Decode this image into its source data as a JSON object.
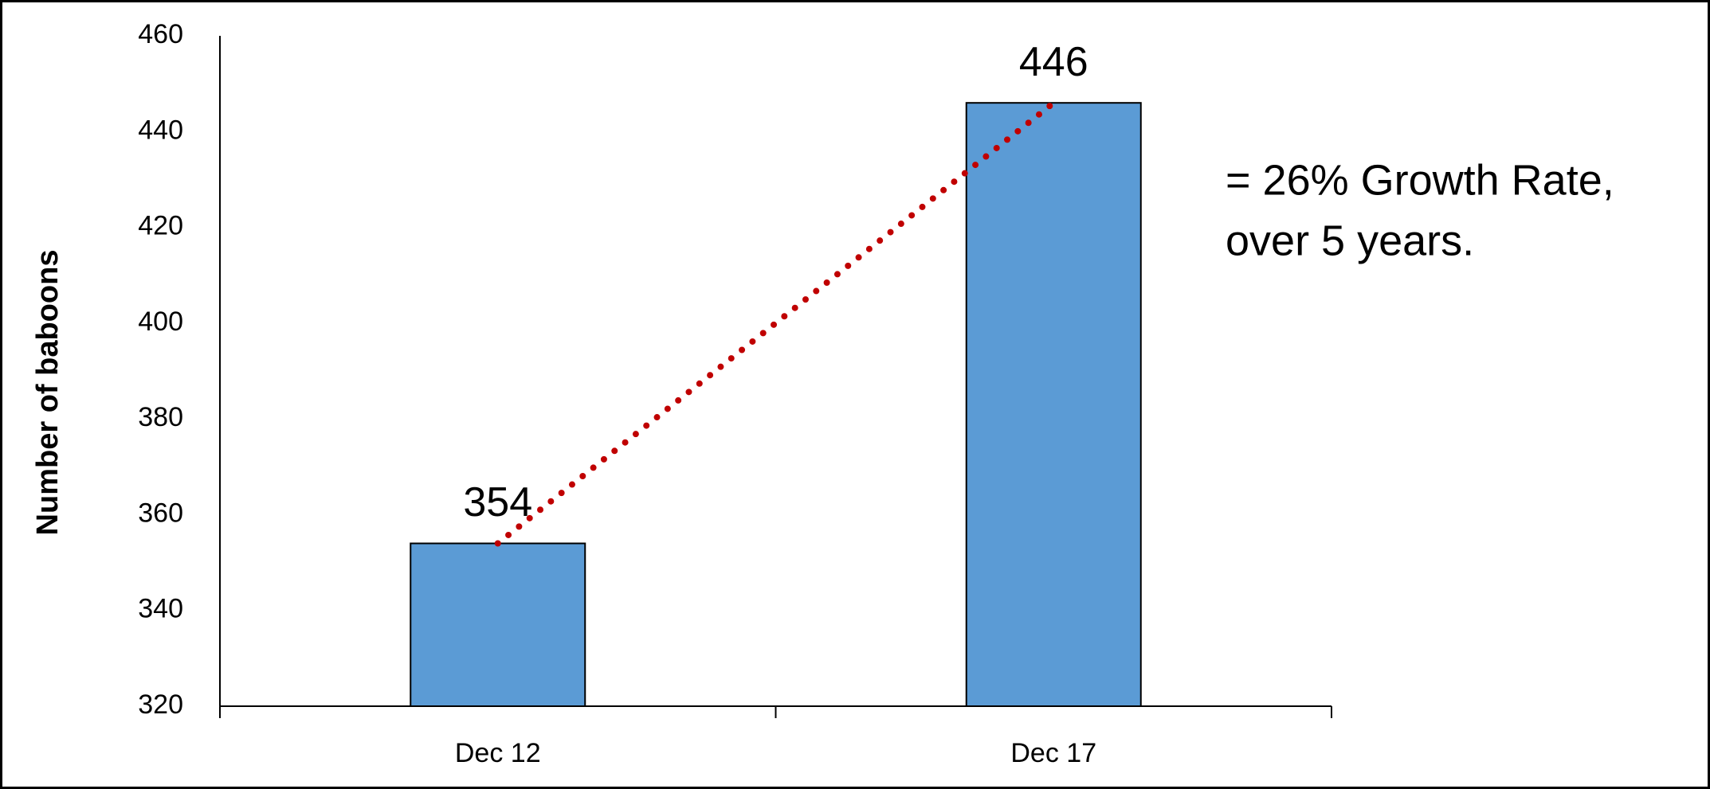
{
  "chart_data": {
    "type": "bar",
    "y_label": "Number of baboons",
    "categories": [
      "Dec 12",
      "Dec 17"
    ],
    "values": [
      354,
      446
    ],
    "color": "#5b9bd5",
    "ylim": [
      320,
      460
    ],
    "yticks": [
      320,
      340,
      360,
      380,
      400,
      420,
      440,
      460
    ],
    "grid": false,
    "trendline": true,
    "trendline_color": "#c00000",
    "annotation": [
      "= 26% Growth Rate,",
      "over 5 years."
    ]
  }
}
